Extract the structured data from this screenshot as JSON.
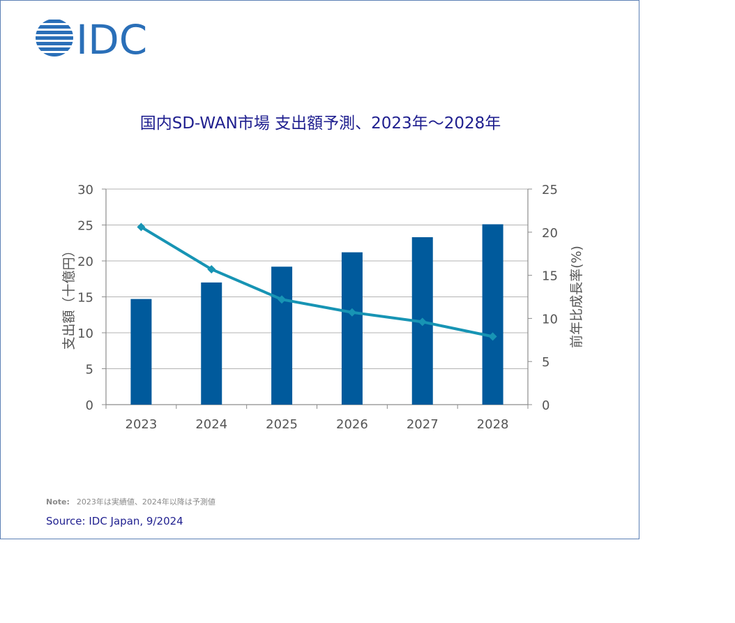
{
  "logo": {
    "text": "IDC",
    "color": "#2a6fb8"
  },
  "chart_data": {
    "type": "bar",
    "title": "国内SD-WAN市場 支出額予測、2023年～2028年",
    "categories": [
      "2023",
      "2024",
      "2025",
      "2026",
      "2027",
      "2028"
    ],
    "series": [
      {
        "type": "bar",
        "axis": "left",
        "color": "#005a9c",
        "values": [
          14.7,
          17.0,
          19.2,
          21.2,
          23.3,
          25.1
        ]
      },
      {
        "type": "line",
        "axis": "right",
        "color": "#1794b4",
        "values": [
          20.6,
          15.7,
          12.2,
          10.7,
          9.6,
          7.9
        ]
      }
    ],
    "ylabel": "支出額（十億円）",
    "y2label": "前年比成長率(%)",
    "ylim": [
      0,
      30
    ],
    "y2lim": [
      0,
      25
    ],
    "yticks": [
      "0",
      "5",
      "10",
      "15",
      "20",
      "25",
      "30"
    ],
    "y2ticks": [
      "0",
      "5",
      "10",
      "15",
      "20",
      "25"
    ],
    "grid": true
  },
  "note": {
    "label": "Note:",
    "text": "2023年は実績値、2024年以降は予測値"
  },
  "source": "Source: IDC Japan, 9/2024"
}
